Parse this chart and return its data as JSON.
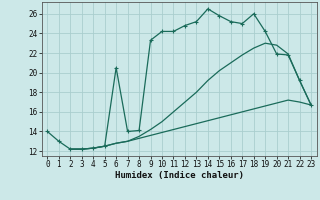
{
  "line1_x": [
    0,
    1,
    2,
    3,
    4,
    5,
    6,
    7,
    8,
    9,
    10,
    11,
    12,
    13,
    14,
    15,
    16,
    17,
    18,
    19,
    20,
    21,
    22,
    23
  ],
  "line1_y": [
    14.0,
    13.0,
    12.2,
    12.2,
    12.3,
    12.5,
    20.5,
    14.0,
    14.1,
    23.3,
    24.2,
    24.2,
    24.8,
    25.2,
    26.5,
    25.8,
    25.2,
    25.0,
    26.0,
    24.2,
    21.9,
    21.8,
    19.2,
    16.7
  ],
  "line2_x": [
    2,
    3,
    4,
    5,
    6,
    7,
    8,
    9,
    10,
    11,
    12,
    13,
    14,
    15,
    16,
    17,
    18,
    19,
    20,
    21,
    22,
    23
  ],
  "line2_y": [
    12.2,
    12.2,
    12.3,
    12.5,
    12.8,
    13.0,
    13.5,
    14.2,
    15.0,
    16.0,
    17.0,
    18.0,
    19.2,
    20.2,
    21.0,
    21.8,
    22.5,
    23.0,
    22.8,
    21.9,
    19.2,
    16.7
  ],
  "line3_x": [
    2,
    3,
    4,
    5,
    6,
    7,
    8,
    9,
    10,
    11,
    12,
    13,
    14,
    15,
    16,
    17,
    18,
    19,
    20,
    21,
    22,
    23
  ],
  "line3_y": [
    12.2,
    12.2,
    12.3,
    12.5,
    12.8,
    13.0,
    13.3,
    13.6,
    13.9,
    14.2,
    14.5,
    14.8,
    15.1,
    15.4,
    15.7,
    16.0,
    16.3,
    16.6,
    16.9,
    17.2,
    17.0,
    16.7
  ],
  "color": "#1a6b5a",
  "bg_color": "#cce8e8",
  "grid_color": "#aacece",
  "xlabel": "Humidex (Indice chaleur)",
  "xlim": [
    -0.5,
    23.5
  ],
  "ylim": [
    11.5,
    27.2
  ],
  "yticks": [
    12,
    14,
    16,
    18,
    20,
    22,
    24,
    26
  ],
  "xticks": [
    0,
    1,
    2,
    3,
    4,
    5,
    6,
    7,
    8,
    9,
    10,
    11,
    12,
    13,
    14,
    15,
    16,
    17,
    18,
    19,
    20,
    21,
    22,
    23
  ],
  "label_fontsize": 6.5,
  "tick_fontsize": 5.5
}
